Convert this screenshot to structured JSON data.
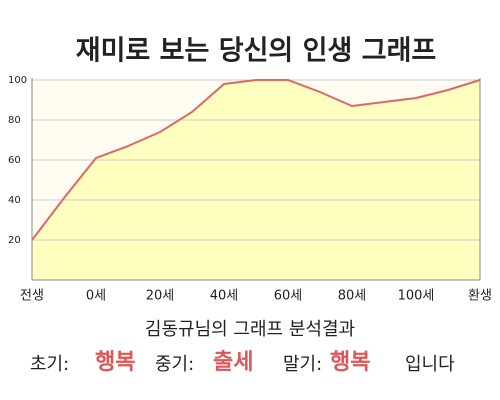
{
  "chart_data": {
    "type": "line",
    "title": "재미로 보는 당신의 인생 그래프",
    "categories": [
      "전생",
      null,
      "0세",
      null,
      "20세",
      null,
      "40세",
      null,
      "60세",
      null,
      "80세",
      null,
      "100세",
      null,
      "환생"
    ],
    "values": [
      20,
      41,
      61,
      67,
      74,
      84,
      98,
      100,
      100,
      94,
      87,
      89,
      91,
      95,
      100
    ],
    "color": "#e06666",
    "fill": "#ffffc0",
    "ylim": [
      0,
      100
    ],
    "yticks": [
      20,
      40,
      60,
      80,
      100
    ],
    "grid": true
  },
  "result": {
    "heading": "김동규님의 그래프 분석결과",
    "early_label": "초기:",
    "early": "행복",
    "middle_label": "중기:",
    "middle": "출세",
    "late_label": "말기:",
    "late": "행복",
    "ending": "입니다"
  }
}
